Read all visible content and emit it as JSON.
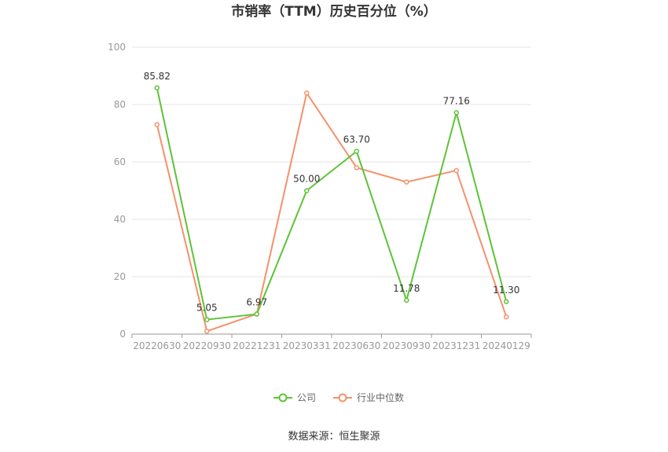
{
  "chart_data": {
    "type": "line",
    "title": "市销率（TTM）历史百分位（%）",
    "xlabel": "",
    "ylabel": "",
    "categories": [
      "20220630",
      "20220930",
      "20221231",
      "20230331",
      "20230630",
      "20230930",
      "20231231",
      "20240129"
    ],
    "ylim": [
      0,
      100
    ],
    "yticks": [
      "0",
      "20",
      "40",
      "60",
      "80",
      "100"
    ],
    "grid": true,
    "legend_position": "bottom",
    "series": [
      {
        "name": "公司",
        "color": "#5dc337",
        "values": [
          85.82,
          5.05,
          6.97,
          50.0,
          63.7,
          11.78,
          77.16,
          11.3
        ],
        "labels": [
          "85.82",
          "5.05",
          "6.97",
          "50.00",
          "63.70",
          "11.78",
          "77.16",
          "11.30"
        ]
      },
      {
        "name": "行业中位数",
        "color": "#f4916b",
        "values": [
          73,
          1,
          7,
          84,
          58,
          53,
          57,
          6
        ]
      }
    ],
    "source": "数据来源：恒生聚源"
  }
}
